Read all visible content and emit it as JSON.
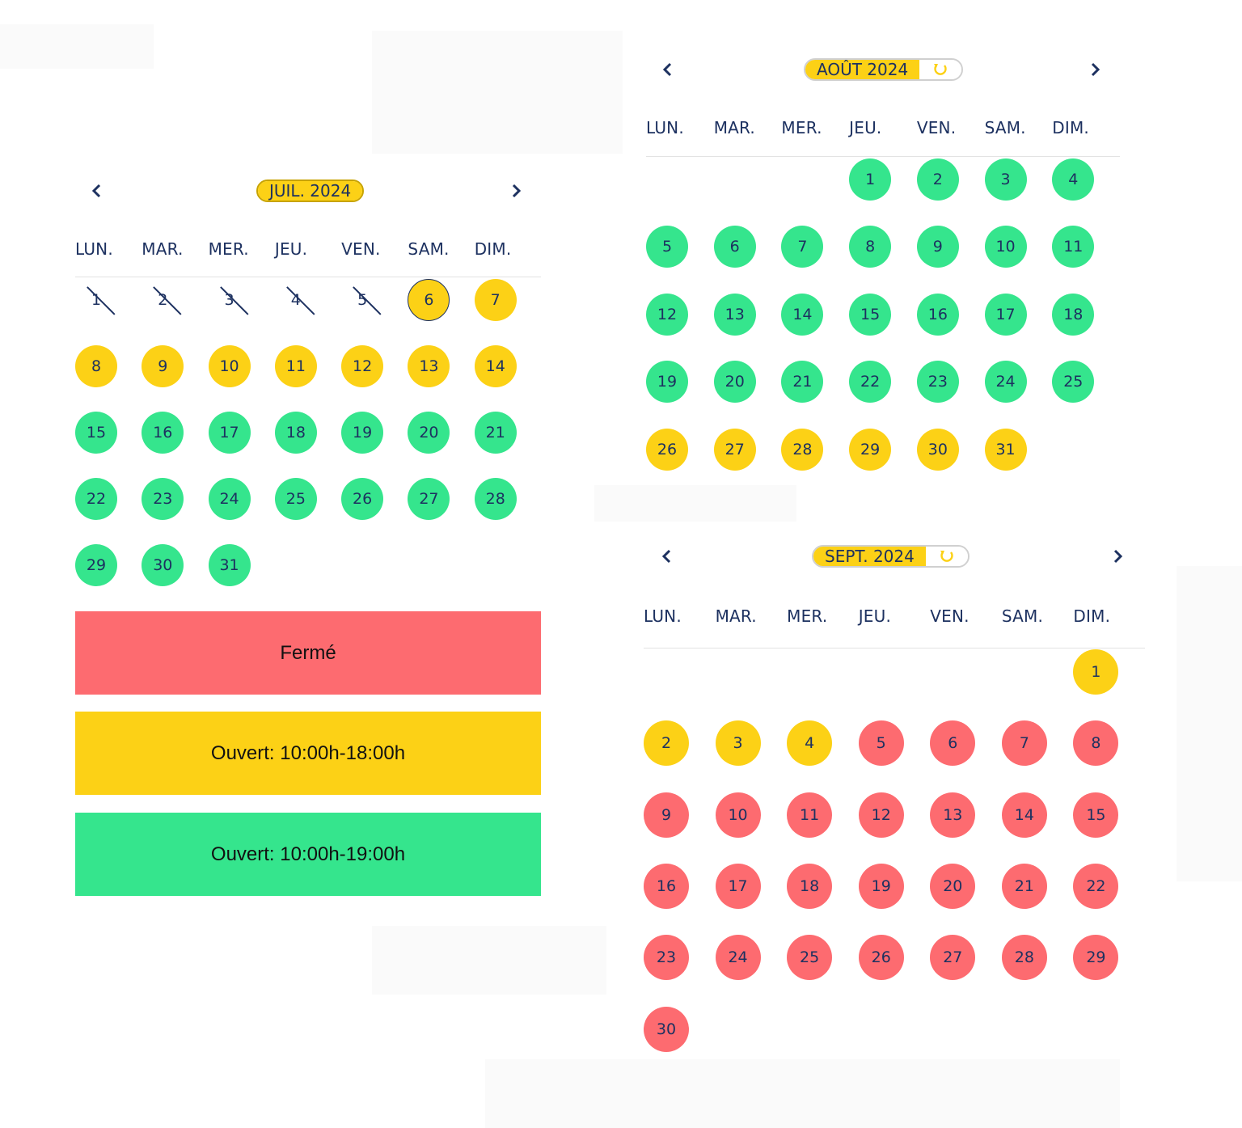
{
  "colors": {
    "closed": "#fd6b70",
    "open_short": "#fcd116",
    "open_long": "#35e58d",
    "text": "#1d3160"
  },
  "weekdays": [
    "LUN.",
    "MAR.",
    "MER.",
    "JEU.",
    "VEN.",
    "SAM.",
    "DIM."
  ],
  "calendars": {
    "july": {
      "month_label": "JUIL. 2024",
      "days": [
        "1",
        "2",
        "3",
        "4",
        "5",
        "6",
        "7",
        "8",
        "9",
        "10",
        "11",
        "12",
        "13",
        "14",
        "15",
        "16",
        "17",
        "18",
        "19",
        "20",
        "21",
        "22",
        "23",
        "24",
        "25",
        "26",
        "27",
        "28",
        "29",
        "30",
        "31"
      ],
      "day_status": [
        "closed",
        "closed",
        "closed",
        "closed",
        "closed",
        "yellow",
        "yellow",
        "yellow",
        "yellow",
        "yellow",
        "yellow",
        "yellow",
        "yellow",
        "yellow",
        "green",
        "green",
        "green",
        "green",
        "green",
        "green",
        "green",
        "green",
        "green",
        "green",
        "green",
        "green",
        "green",
        "green",
        "green",
        "green",
        "green"
      ],
      "selected_day": "6"
    },
    "august": {
      "month_label": "AOÛT 2024",
      "days": [
        "1",
        "2",
        "3",
        "4",
        "5",
        "6",
        "7",
        "8",
        "9",
        "10",
        "11",
        "12",
        "13",
        "14",
        "15",
        "16",
        "17",
        "18",
        "19",
        "20",
        "21",
        "22",
        "23",
        "24",
        "25",
        "26",
        "27",
        "28",
        "29",
        "30",
        "31"
      ],
      "day_status": [
        "green",
        "green",
        "green",
        "green",
        "green",
        "green",
        "green",
        "green",
        "green",
        "green",
        "green",
        "green",
        "green",
        "green",
        "green",
        "green",
        "green",
        "green",
        "green",
        "green",
        "green",
        "green",
        "green",
        "green",
        "green",
        "yellow",
        "yellow",
        "yellow",
        "yellow",
        "yellow",
        "yellow"
      ]
    },
    "september": {
      "month_label": "SEPT. 2024",
      "days": [
        "1",
        "2",
        "3",
        "4",
        "5",
        "6",
        "7",
        "8",
        "9",
        "10",
        "11",
        "12",
        "13",
        "14",
        "15",
        "16",
        "17",
        "18",
        "19",
        "20",
        "21",
        "22",
        "23",
        "24",
        "25",
        "26",
        "27",
        "28",
        "29",
        "30"
      ],
      "day_status": [
        "yellow",
        "yellow",
        "yellow",
        "yellow",
        "red",
        "red",
        "red",
        "red",
        "red",
        "red",
        "red",
        "red",
        "red",
        "red",
        "red",
        "red",
        "red",
        "red",
        "red",
        "red",
        "red",
        "red",
        "red",
        "red",
        "red",
        "red",
        "red",
        "red",
        "red",
        "red"
      ]
    }
  },
  "legend": {
    "closed": "Fermé",
    "open_short": "Ouvert: 10:00h-18:00h",
    "open_long": "Ouvert: 10:00h-19:00h"
  },
  "icons": {
    "prev": "chevron-left-icon",
    "next": "chevron-right-icon",
    "reload": "reload-icon"
  }
}
